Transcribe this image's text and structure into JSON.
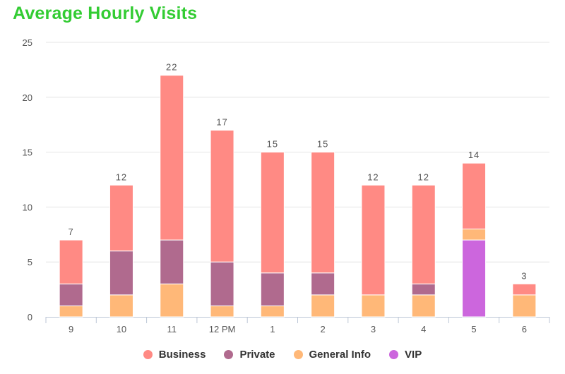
{
  "chart_data": {
    "type": "bar",
    "stacked": true,
    "title": "Average Hourly Visits",
    "xlabel": "",
    "ylabel": "",
    "categories": [
      "9",
      "10",
      "11",
      "12 PM",
      "1",
      "2",
      "3",
      "4",
      "5",
      "6"
    ],
    "totals": [
      "7",
      "12",
      "22",
      "17",
      "15",
      "15",
      "12",
      "12",
      "14",
      "3"
    ],
    "series": [
      {
        "name": "General Info",
        "color": "#ffb878",
        "values": [
          1,
          2,
          3,
          1,
          1,
          2,
          2,
          2,
          1,
          2
        ]
      },
      {
        "name": "Private",
        "color": "#b06a8e",
        "values": [
          2,
          4,
          4,
          4,
          3,
          2,
          0,
          1,
          0,
          0
        ]
      },
      {
        "name": "Business",
        "color": "#ff8a84",
        "values": [
          4,
          6,
          15,
          12,
          11,
          11,
          10,
          9,
          6,
          1
        ]
      },
      {
        "name": "VIP",
        "color": "#cc66dd",
        "values": [
          0,
          0,
          0,
          0,
          0,
          0,
          0,
          0,
          7,
          0
        ]
      }
    ],
    "stack_order": [
      "VIP",
      "General Info",
      "Private",
      "Business"
    ],
    "legend_order": [
      "Business",
      "Private",
      "General Info",
      "VIP"
    ],
    "ylim": [
      0,
      25
    ],
    "yticks": [
      "0",
      "5",
      "10",
      "15",
      "20",
      "25"
    ],
    "grid": true,
    "legend_position": "bottom"
  }
}
